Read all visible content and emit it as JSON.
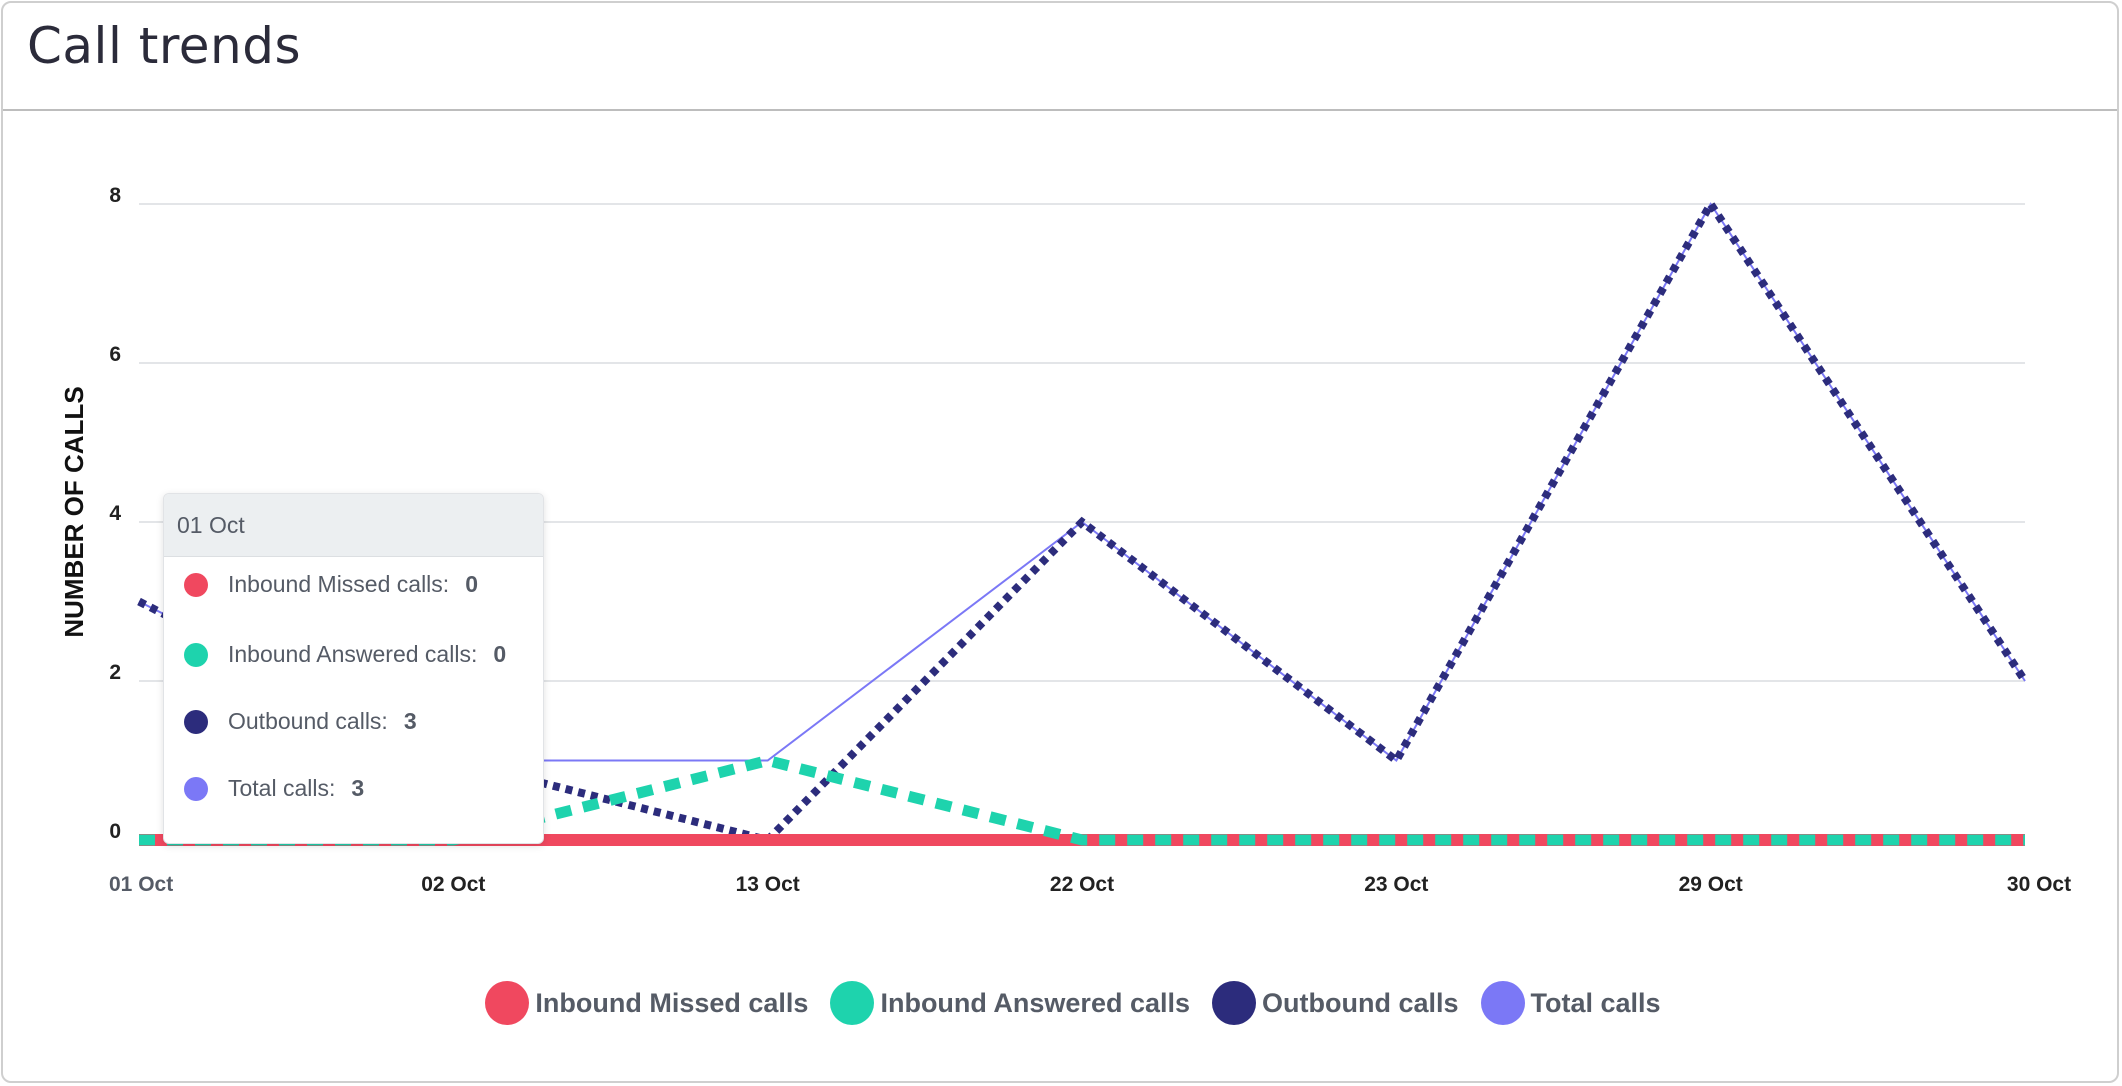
{
  "header": {
    "title": "Call trends"
  },
  "chart_data": {
    "type": "line",
    "ylabel": "NUMBER OF CALLS",
    "categories": [
      "01 Oct",
      "02 Oct",
      "13 Oct",
      "22 Oct",
      "23 Oct",
      "29 Oct",
      "30 Oct"
    ],
    "y_ticks": [
      "0",
      "2",
      "4",
      "6",
      "8"
    ],
    "ylim": [
      0,
      8
    ],
    "grid": true,
    "legend_position": "bottom",
    "series": [
      {
        "name": "Inbound Missed calls",
        "color": "#f0485f",
        "style": "solid-thick",
        "values": [
          0,
          0,
          0,
          0,
          0,
          0,
          0
        ]
      },
      {
        "name": "Inbound Answered calls",
        "color": "#1ed3ad",
        "style": "dashed",
        "values": [
          0,
          0,
          1,
          0,
          0,
          0,
          0
        ]
      },
      {
        "name": "Outbound calls",
        "color": "#2c2c7c",
        "style": "dotted",
        "values": [
          3,
          1,
          0,
          4,
          1,
          8,
          2
        ]
      },
      {
        "name": "Total calls",
        "color": "#7b78f6",
        "style": "thin",
        "values": [
          3,
          1,
          1,
          4,
          1,
          8,
          2
        ]
      }
    ]
  },
  "tooltip": {
    "title": "01 Oct",
    "rows": [
      {
        "label": "Inbound Missed calls:",
        "value": "0",
        "color": "#f0485f"
      },
      {
        "label": "Inbound Answered calls:",
        "value": "0",
        "color": "#1ed3ad"
      },
      {
        "label": "Outbound calls:",
        "value": "3",
        "color": "#2c2c7c"
      },
      {
        "label": "Total calls:",
        "value": "3",
        "color": "#7b78f6"
      }
    ]
  }
}
